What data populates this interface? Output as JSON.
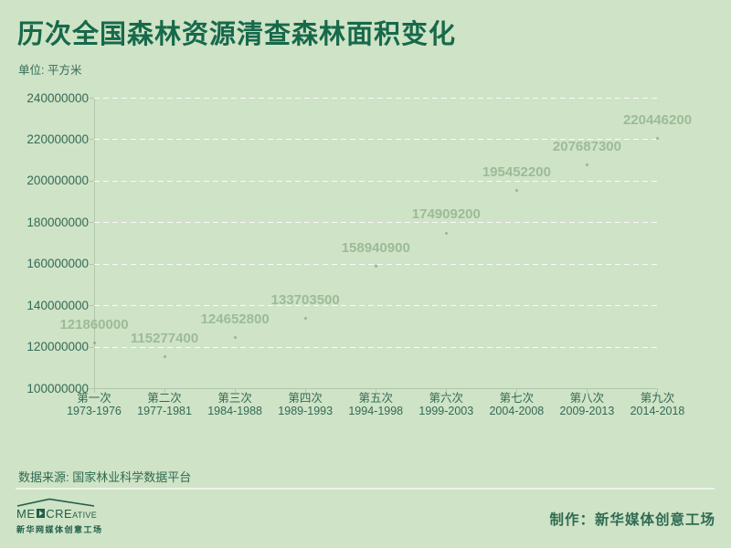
{
  "page": {
    "title": "历次全国森林资源清查森林面积变化",
    "unit_label": "单位: 平方米"
  },
  "chart_data": {
    "type": "scatter",
    "title": "历次全国森林资源清查森林面积变化",
    "unit": "平方米",
    "categories": [
      "第一次",
      "第二次",
      "第三次",
      "第四次",
      "第五次",
      "第六次",
      "第七次",
      "第八次",
      "第九次"
    ],
    "category_years": [
      "1973-1976",
      "1977-1981",
      "1984-1988",
      "1989-1993",
      "1994-1998",
      "1999-2003",
      "2004-2008",
      "2009-2013",
      "2014-2018"
    ],
    "values": [
      121860000,
      115277400,
      124652800,
      133703500,
      158940900,
      174909200,
      195452200,
      207687300,
      220446200
    ],
    "ylim": [
      100000000,
      240000000
    ],
    "ytick_step": 20000000,
    "grid": true,
    "grid_style": "dashed",
    "legend": "none",
    "data_labels": true
  },
  "footer": {
    "source": "数据来源: 国家林业科学数据平台",
    "credit": "制作：新华媒体创意工场",
    "logo": {
      "wordmark_pre": "ME",
      "wordmark_post_large": "CRE",
      "wordmark_post_small": "ATIVE",
      "subtext": "新华网媒体创意工场"
    }
  },
  "colors": {
    "background": "#cfe3c6",
    "title": "#17694b",
    "axis_text": "#336a56",
    "data_label": "#9cbb97",
    "grid": "#ffffff",
    "spine": "#b2c6ac",
    "dot": "#6e8f6a",
    "footer_text": "#2e6b52",
    "logo": "#215e49"
  }
}
